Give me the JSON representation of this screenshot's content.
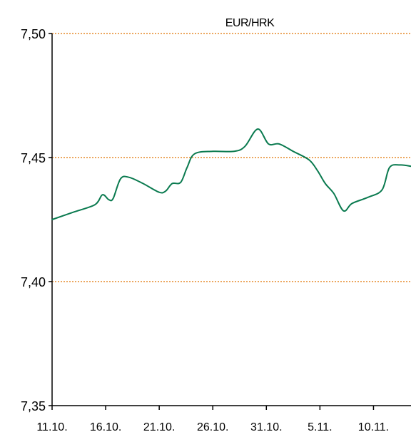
{
  "chart_data": {
    "type": "line",
    "title": "EUR/HRK",
    "xlabel": "",
    "ylabel": "",
    "x_tick_labels": [
      "11.10.",
      "16.10.",
      "21.10.",
      "26.10.",
      "31.10.",
      "5.11.",
      "10.11."
    ],
    "y_tick_labels": [
      "7,35",
      "7,40",
      "7,45",
      "7,50"
    ],
    "y_ticks": [
      7.35,
      7.4,
      7.45,
      7.5
    ],
    "ylim": [
      7.35,
      7.5
    ],
    "x_tick_days": [
      0,
      5,
      10,
      15,
      20,
      25,
      30
    ],
    "xlim_days": [
      0,
      33.5
    ],
    "grid": "horizontal dotted",
    "legend": "none",
    "series": [
      {
        "color": "#0a7a4f",
        "points": [
          [
            0,
            7.425
          ],
          [
            2,
            7.428
          ],
          [
            4,
            7.431
          ],
          [
            4.7,
            7.435
          ],
          [
            5.3,
            7.433
          ],
          [
            5.7,
            7.4335
          ],
          [
            6.4,
            7.4415
          ],
          [
            7.2,
            7.442
          ],
          [
            8.5,
            7.4395
          ],
          [
            10,
            7.436
          ],
          [
            10.6,
            7.4365
          ],
          [
            11.2,
            7.4395
          ],
          [
            12,
            7.44
          ],
          [
            12.6,
            7.446
          ],
          [
            13.3,
            7.4515
          ],
          [
            15,
            7.4525
          ],
          [
            17,
            7.4525
          ],
          [
            18,
            7.4545
          ],
          [
            19.2,
            7.4615
          ],
          [
            20.2,
            7.4555
          ],
          [
            21.2,
            7.4555
          ],
          [
            22.5,
            7.4525
          ],
          [
            24,
            7.449
          ],
          [
            24.8,
            7.4445
          ],
          [
            25.5,
            7.4395
          ],
          [
            26.3,
            7.4355
          ],
          [
            27.2,
            7.4285
          ],
          [
            28,
            7.4315
          ],
          [
            29.5,
            7.434
          ],
          [
            30.8,
            7.437
          ],
          [
            31.5,
            7.446
          ],
          [
            32.5,
            7.447
          ],
          [
            33.5,
            7.4465
          ]
        ]
      }
    ],
    "colors": {
      "line": "#0a7a4f",
      "grid": "#e58a2a",
      "axis": "#000000"
    }
  }
}
